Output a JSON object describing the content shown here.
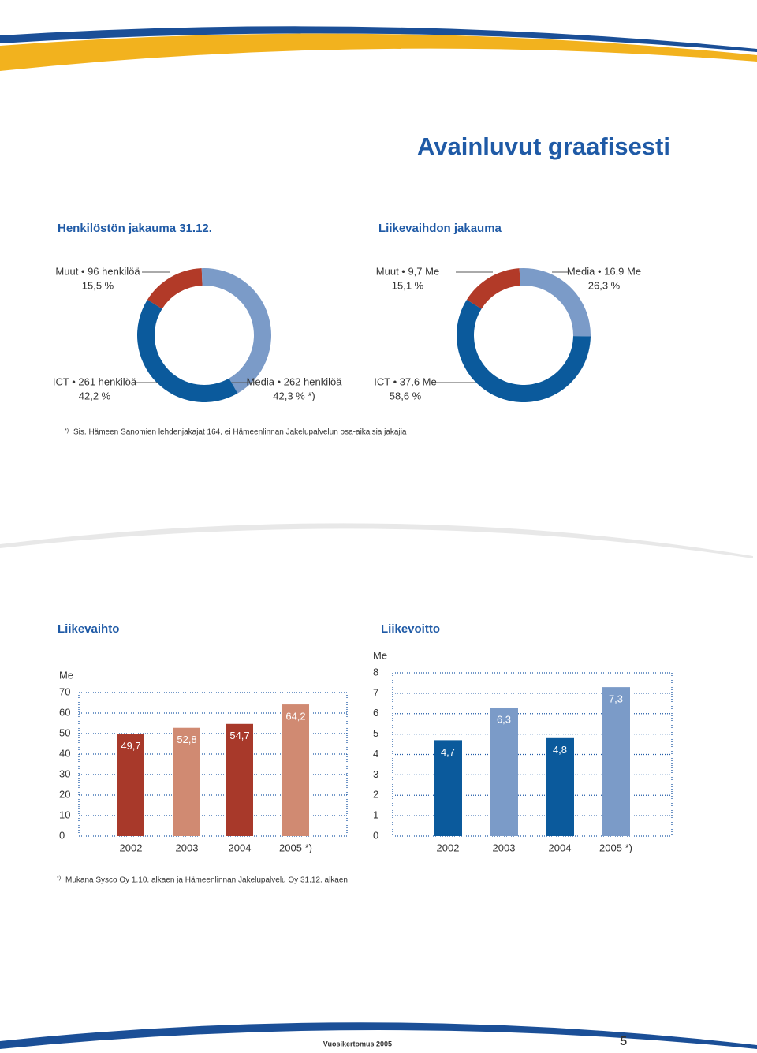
{
  "header": {
    "title": "Avainluvut graafisesti"
  },
  "chart_data": [
    {
      "type": "donut",
      "title": "Henkilöstön jakauma 31.12.",
      "categories": [
        "Muut • 96 henkilöä",
        "Media • 262 henkilöä",
        "ICT • 261 henkilöä"
      ],
      "values": [
        15.5,
        42.3,
        42.2
      ],
      "value_labels": [
        "15,5 %",
        "42,3 % *)",
        "42,2 %"
      ],
      "colors": [
        "#b23a28",
        "#7b9bc8",
        "#0b5a9c"
      ]
    },
    {
      "type": "donut",
      "title": "Liikevaihdon jakauma",
      "categories": [
        "Muut • 9,7 Me",
        "Media • 16,9 Me",
        "ICT • 37,6 Me"
      ],
      "values": [
        15.1,
        26.3,
        58.6
      ],
      "value_labels": [
        "15,1 %",
        "26,3 %",
        "58,6 %"
      ],
      "colors": [
        "#b23a28",
        "#7b9bc8",
        "#0b5a9c"
      ]
    },
    {
      "type": "bar",
      "title": "Liikevaihto",
      "y_label": "Me",
      "categories": [
        "2002",
        "2003",
        "2004",
        "2005 *)"
      ],
      "values": [
        49.7,
        52.8,
        54.7,
        64.2
      ],
      "value_labels": [
        "49,7",
        "52,8",
        "54,7",
        "64,2"
      ],
      "colors": [
        "#a8392a",
        "#d08a72",
        "#a8392a",
        "#d08a72"
      ],
      "ylim": [
        0,
        70
      ],
      "yticks": [
        0,
        10,
        20,
        30,
        40,
        50,
        60,
        70
      ],
      "grid": true
    },
    {
      "type": "bar",
      "title": "Liikevoitto",
      "y_label": "Me",
      "categories": [
        "2002",
        "2003",
        "2004",
        "2005 *)"
      ],
      "values": [
        4.7,
        6.3,
        4.8,
        7.3
      ],
      "value_labels": [
        "4,7",
        "6,3",
        "4,8",
        "7,3"
      ],
      "colors": [
        "#0b5a9c",
        "#7b9bc8",
        "#0b5a9c",
        "#7b9bc8"
      ],
      "ylim": [
        0,
        8
      ],
      "yticks": [
        0,
        1,
        2,
        3,
        4,
        5,
        6,
        7,
        8
      ],
      "grid": true
    }
  ],
  "footnotes": [
    {
      "mark": "*)",
      "text": "Sis. Hämeen Sanomien lehdenjakajat 164, ei Hämeenlinnan Jakelupalvelun osa-aikaisia jakajia"
    },
    {
      "mark": "*)",
      "text": "Mukana Sysco Oy 1.10. alkaen ja Hämeenlinnan Jakelupalvelu Oy 31.12. alkaen"
    }
  ],
  "footer": {
    "publication": "Vuosikertomus 2005",
    "page": "5"
  }
}
